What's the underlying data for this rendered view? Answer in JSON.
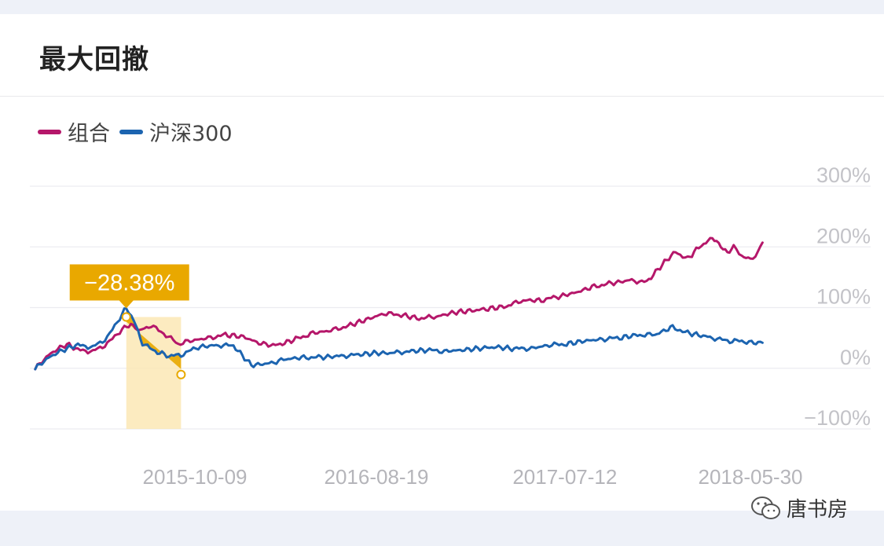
{
  "card": {
    "title": "最大回撤"
  },
  "legend": [
    {
      "label": "组合",
      "color": "#b5176a"
    },
    {
      "label": "沪深300",
      "color": "#1c64b0"
    }
  ],
  "watermark": {
    "text": "唐书房",
    "icon": "wechat-icon"
  },
  "chart_data": {
    "type": "line",
    "x_ticks": [
      "2015-10-09",
      "2016-08-19",
      "2017-07-12",
      "2018-05-30"
    ],
    "y_ticks": [
      "300%",
      "200%",
      "100%",
      "0%",
      "−100%"
    ],
    "ylim": [
      -100,
      300
    ],
    "xlim": [
      "2015-01-05",
      "2018-06-12"
    ],
    "grid": true,
    "legend_position": "top-left",
    "series": [
      {
        "name": "组合",
        "color": "#b5176a",
        "points": [
          [
            "2015-01-05",
            0
          ],
          [
            "2015-02-01",
            25
          ],
          [
            "2015-03-01",
            40
          ],
          [
            "2015-03-20",
            30
          ],
          [
            "2015-04-15",
            28
          ],
          [
            "2015-05-10",
            40
          ],
          [
            "2015-06-05",
            65
          ],
          [
            "2015-06-20",
            72
          ],
          [
            "2015-07-05",
            62
          ],
          [
            "2015-07-25",
            70
          ],
          [
            "2015-08-20",
            55
          ],
          [
            "2015-09-10",
            40
          ],
          [
            "2015-10-01",
            45
          ],
          [
            "2015-11-01",
            50
          ],
          [
            "2015-12-01",
            55
          ],
          [
            "2016-01-01",
            52
          ],
          [
            "2016-02-01",
            40
          ],
          [
            "2016-03-01",
            38
          ],
          [
            "2016-04-01",
            48
          ],
          [
            "2016-05-01",
            58
          ],
          [
            "2016-06-01",
            62
          ],
          [
            "2016-07-01",
            70
          ],
          [
            "2016-08-01",
            80
          ],
          [
            "2016-09-01",
            90
          ],
          [
            "2016-10-01",
            88
          ],
          [
            "2016-11-01",
            82
          ],
          [
            "2016-12-01",
            85
          ],
          [
            "2017-01-01",
            92
          ],
          [
            "2017-02-01",
            95
          ],
          [
            "2017-03-01",
            98
          ],
          [
            "2017-04-01",
            102
          ],
          [
            "2017-05-01",
            112
          ],
          [
            "2017-06-01",
            112
          ],
          [
            "2017-07-01",
            118
          ],
          [
            "2017-08-01",
            125
          ],
          [
            "2017-09-01",
            135
          ],
          [
            "2017-10-01",
            140
          ],
          [
            "2017-11-01",
            145
          ],
          [
            "2017-12-01",
            142
          ],
          [
            "2018-01-01",
            175
          ],
          [
            "2018-01-20",
            192
          ],
          [
            "2018-02-10",
            180
          ],
          [
            "2018-02-25",
            195
          ],
          [
            "2018-03-10",
            205
          ],
          [
            "2018-03-25",
            215
          ],
          [
            "2018-04-05",
            205
          ],
          [
            "2018-04-20",
            190
          ],
          [
            "2018-05-01",
            200
          ],
          [
            "2018-05-15",
            185
          ],
          [
            "2018-05-30",
            180
          ],
          [
            "2018-06-12",
            190
          ],
          [
            "2018-06-20",
            207
          ]
        ]
      },
      {
        "name": "沪深300",
        "color": "#1c64b0",
        "points": [
          [
            "2015-01-05",
            0
          ],
          [
            "2015-02-01",
            20
          ],
          [
            "2015-03-01",
            33
          ],
          [
            "2015-03-20",
            38
          ],
          [
            "2015-04-15",
            35
          ],
          [
            "2015-05-10",
            50
          ],
          [
            "2015-06-05",
            90
          ],
          [
            "2015-06-12",
            100
          ],
          [
            "2015-06-25",
            80
          ],
          [
            "2015-07-10",
            40
          ],
          [
            "2015-08-01",
            28
          ],
          [
            "2015-08-25",
            20
          ],
          [
            "2015-09-15",
            22
          ],
          [
            "2015-10-15",
            35
          ],
          [
            "2015-11-15",
            38
          ],
          [
            "2015-12-15",
            37
          ],
          [
            "2016-01-15",
            5
          ],
          [
            "2016-02-15",
            8
          ],
          [
            "2016-03-15",
            15
          ],
          [
            "2016-04-15",
            18
          ],
          [
            "2016-05-15",
            18
          ],
          [
            "2016-06-15",
            20
          ],
          [
            "2016-07-15",
            22
          ],
          [
            "2016-08-15",
            25
          ],
          [
            "2016-09-15",
            25
          ],
          [
            "2016-10-15",
            28
          ],
          [
            "2016-11-15",
            30
          ],
          [
            "2016-12-15",
            28
          ],
          [
            "2017-01-15",
            30
          ],
          [
            "2017-02-15",
            33
          ],
          [
            "2017-03-15",
            35
          ],
          [
            "2017-04-15",
            32
          ],
          [
            "2017-05-15",
            33
          ],
          [
            "2017-06-15",
            38
          ],
          [
            "2017-07-15",
            40
          ],
          [
            "2017-08-15",
            45
          ],
          [
            "2017-09-15",
            48
          ],
          [
            "2017-10-15",
            50
          ],
          [
            "2017-11-15",
            55
          ],
          [
            "2017-12-15",
            55
          ],
          [
            "2018-01-15",
            68
          ],
          [
            "2018-02-10",
            58
          ],
          [
            "2018-03-01",
            55
          ],
          [
            "2018-03-25",
            50
          ],
          [
            "2018-04-20",
            45
          ],
          [
            "2018-05-15",
            45
          ],
          [
            "2018-06-01",
            42
          ],
          [
            "2018-06-20",
            42
          ]
        ]
      }
    ],
    "annotation": {
      "label": "−28.38%",
      "max_drawdown_start": "2015-06-12",
      "max_drawdown_end": "2015-09-15"
    }
  }
}
